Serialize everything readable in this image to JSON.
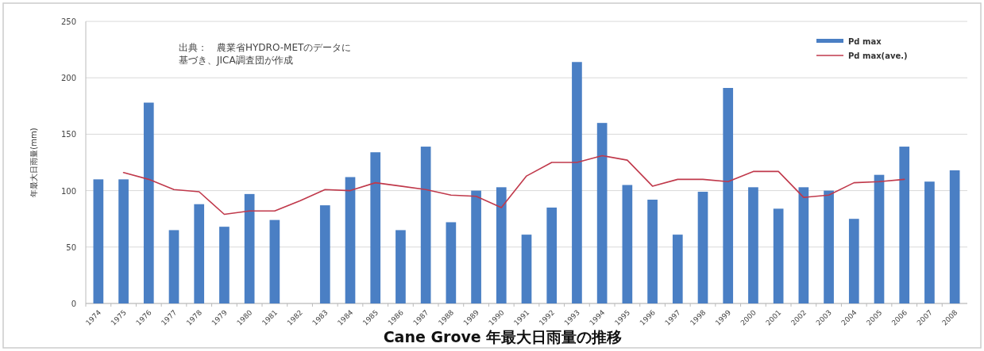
{
  "chart_data": {
    "type": "bar",
    "title": "Cane Grove 年最大日雨量の推移",
    "ylabel": "年最大日雨量(mm)",
    "annotations": [
      "出典：　農業省HYDRO-METのデータに",
      "基づき、JICA調査団が作成"
    ],
    "categories": [
      "1974",
      "1975",
      "1976",
      "1977",
      "1978",
      "1979",
      "1980",
      "1981",
      "1982",
      "1983",
      "1984",
      "1985",
      "1986",
      "1987",
      "1988",
      "1989",
      "1990",
      "1991",
      "1992",
      "1993",
      "1994",
      "1995",
      "1996",
      "1997",
      "1998",
      "1999",
      "2000",
      "2001",
      "2002",
      "2003",
      "2004",
      "2005",
      "2006",
      "2007",
      "2008"
    ],
    "series": [
      {
        "name": "Pd max",
        "color": "#4a7fc4",
        "values": [
          110,
          110,
          178,
          65,
          88,
          68,
          97,
          74,
          null,
          87,
          112,
          134,
          65,
          139,
          72,
          100,
          103,
          61,
          85,
          214,
          160,
          105,
          92,
          61,
          99,
          191,
          103,
          84,
          103,
          100,
          75,
          114,
          139,
          108,
          118
        ]
      },
      {
        "name": "Pd max(ave.)",
        "type": "line",
        "color": "#c0394b",
        "values": [
          null,
          116,
          110,
          101,
          99,
          79,
          82,
          82,
          91,
          101,
          100,
          107,
          104,
          101,
          96,
          95,
          85,
          113,
          125,
          125,
          131,
          127,
          104,
          110,
          110,
          108,
          117,
          117,
          94,
          96,
          107,
          108,
          110,
          null,
          null
        ]
      }
    ],
    "ylim": [
      0,
      250
    ],
    "yticks": [
      0,
      50,
      100,
      150,
      200,
      250
    ],
    "grid": "y",
    "legend": "top right"
  }
}
